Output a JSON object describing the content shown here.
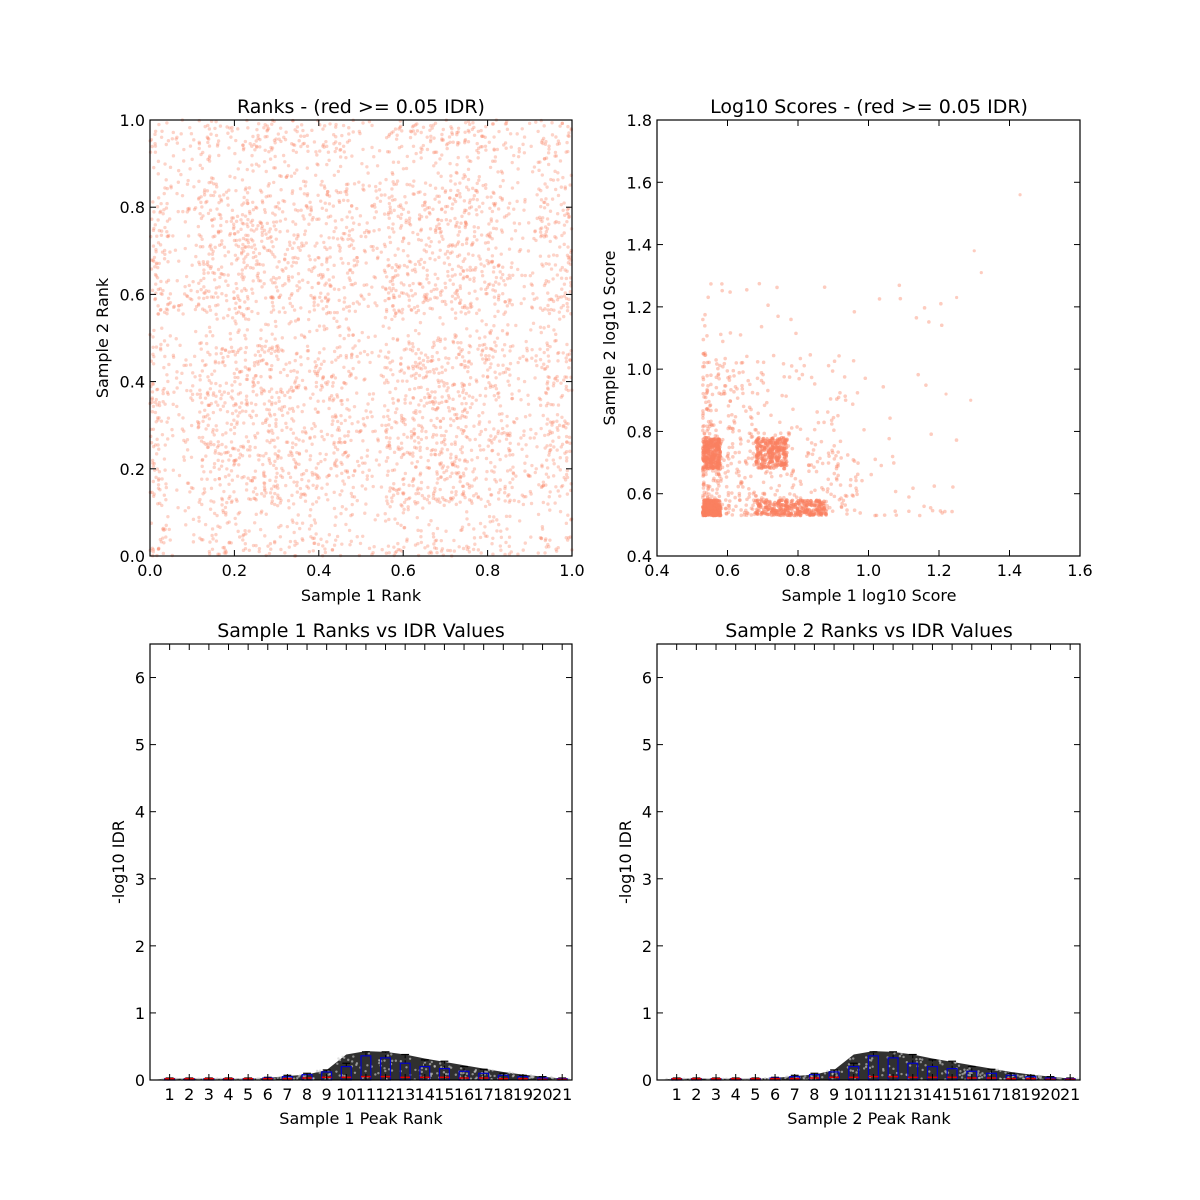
{
  "chart_data": [
    {
      "type": "scatter",
      "title": "Ranks - (red >= 0.05 IDR)",
      "xlabel": "Sample 1 Rank",
      "ylabel": "Sample 2 Rank",
      "xlim": [
        0.0,
        1.0
      ],
      "ylim": [
        0.0,
        1.0
      ],
      "xticks": [
        "0.0",
        "0.2",
        "0.4",
        "0.6",
        "0.8",
        "1.0"
      ],
      "yticks": [
        "0.0",
        "0.2",
        "0.4",
        "0.6",
        "0.8",
        "1.0"
      ],
      "point_color": "#fa8060",
      "description_of_points": "dense uniform cloud of rank pairs covering the unit square, with lighter bands near 0.1, 0.5 and 0.9 on both axes"
    },
    {
      "type": "scatter",
      "title": "Log10 Scores - (red >= 0.05 IDR)",
      "xlabel": "Sample 1 log10 Score",
      "ylabel": "Sample 2 log10 Score",
      "xlim": [
        0.4,
        1.6
      ],
      "ylim": [
        0.4,
        1.8
      ],
      "xticks": [
        "0.4",
        "0.6",
        "0.8",
        "1.0",
        "1.2",
        "1.4",
        "1.6"
      ],
      "yticks": [
        "0.4",
        "0.6",
        "0.8",
        "1.0",
        "1.2",
        "1.4",
        "1.6",
        "1.8"
      ],
      "point_color": "#fa8060",
      "clusters": [
        {
          "x": [
            0.53,
            0.58
          ],
          "y": [
            0.53,
            0.58
          ],
          "density": "high"
        },
        {
          "x": [
            0.53,
            0.58
          ],
          "y": [
            0.68,
            0.78
          ],
          "density": "high"
        },
        {
          "x": [
            0.68,
            0.77
          ],
          "y": [
            0.68,
            0.78
          ],
          "density": "high"
        },
        {
          "x": [
            0.68,
            0.88
          ],
          "y": [
            0.53,
            0.58
          ],
          "density": "high"
        },
        {
          "x": [
            0.53,
            0.97
          ],
          "y": [
            0.53,
            1.05
          ],
          "density": "medium"
        },
        {
          "x": [
            0.53,
            1.25
          ],
          "y": [
            0.53,
            1.28
          ],
          "density": "low"
        }
      ],
      "outliers": [
        [
          1.43,
          1.56
        ],
        [
          1.3,
          1.38
        ],
        [
          1.32,
          1.31
        ],
        [
          1.29,
          0.9
        ],
        [
          1.25,
          1.23
        ],
        [
          1.22,
          0.92
        ]
      ]
    },
    {
      "type": "box",
      "title": "Sample 1 Ranks vs IDR Values",
      "xlabel": "Sample 1 Peak Rank",
      "ylabel": "-log10 IDR",
      "ylim": [
        0,
        6.5
      ],
      "yticks": [
        "0",
        "1",
        "2",
        "3",
        "4",
        "5",
        "6"
      ],
      "categories": [
        "1",
        "2",
        "3",
        "4",
        "5",
        "6",
        "7",
        "8",
        "9",
        "10",
        "11",
        "12",
        "13",
        "14",
        "15",
        "16",
        "17",
        "18",
        "19",
        "20",
        "21"
      ],
      "series": [
        {
          "medians": [
            0.02,
            0.02,
            0.02,
            0.02,
            0.02,
            0.02,
            0.02,
            0.03,
            0.04,
            0.04,
            0.05,
            0.05,
            0.04,
            0.04,
            0.04,
            0.03,
            0.03,
            0.02,
            0.02,
            0.01,
            0.01
          ]
        },
        {
          "q3": [
            0.02,
            0.02,
            0.02,
            0.02,
            0.02,
            0.03,
            0.05,
            0.08,
            0.12,
            0.2,
            0.36,
            0.33,
            0.25,
            0.2,
            0.17,
            0.13,
            0.1,
            0.07,
            0.05,
            0.03,
            0.02
          ]
        },
        {
          "whisker_hi": [
            0.03,
            0.03,
            0.03,
            0.03,
            0.03,
            0.04,
            0.07,
            0.1,
            0.15,
            0.25,
            0.42,
            0.42,
            0.38,
            0.3,
            0.28,
            0.2,
            0.16,
            0.1,
            0.07,
            0.05,
            0.03
          ]
        },
        {
          "density_envelope": [
            0.02,
            0.02,
            0.02,
            0.02,
            0.02,
            0.03,
            0.06,
            0.08,
            0.15,
            0.38,
            0.43,
            0.42,
            0.38,
            0.32,
            0.27,
            0.22,
            0.17,
            0.12,
            0.08,
            0.05,
            0.02
          ]
        }
      ]
    },
    {
      "type": "box",
      "title": "Sample 2 Ranks vs IDR Values",
      "xlabel": "Sample 2 Peak Rank",
      "ylabel": "-log10 IDR",
      "ylim": [
        0,
        6.5
      ],
      "yticks": [
        "0",
        "1",
        "2",
        "3",
        "4",
        "5",
        "6"
      ],
      "categories": [
        "1",
        "2",
        "3",
        "4",
        "5",
        "6",
        "7",
        "8",
        "9",
        "10",
        "11",
        "12",
        "13",
        "14",
        "15",
        "16",
        "17",
        "18",
        "19",
        "20",
        "21"
      ],
      "series": [
        {
          "medians": [
            0.02,
            0.02,
            0.02,
            0.02,
            0.02,
            0.02,
            0.02,
            0.03,
            0.04,
            0.04,
            0.05,
            0.05,
            0.04,
            0.04,
            0.04,
            0.03,
            0.03,
            0.02,
            0.02,
            0.01,
            0.01
          ]
        },
        {
          "q3": [
            0.02,
            0.02,
            0.02,
            0.02,
            0.02,
            0.03,
            0.05,
            0.08,
            0.12,
            0.2,
            0.36,
            0.33,
            0.25,
            0.2,
            0.17,
            0.13,
            0.1,
            0.07,
            0.05,
            0.03,
            0.02
          ]
        },
        {
          "whisker_hi": [
            0.03,
            0.03,
            0.03,
            0.03,
            0.03,
            0.04,
            0.07,
            0.1,
            0.15,
            0.25,
            0.42,
            0.42,
            0.38,
            0.3,
            0.28,
            0.2,
            0.16,
            0.1,
            0.07,
            0.05,
            0.03
          ]
        },
        {
          "density_envelope": [
            0.02,
            0.02,
            0.02,
            0.02,
            0.02,
            0.03,
            0.06,
            0.08,
            0.15,
            0.38,
            0.43,
            0.42,
            0.38,
            0.32,
            0.27,
            0.22,
            0.17,
            0.12,
            0.08,
            0.05,
            0.02
          ]
        }
      ]
    }
  ]
}
